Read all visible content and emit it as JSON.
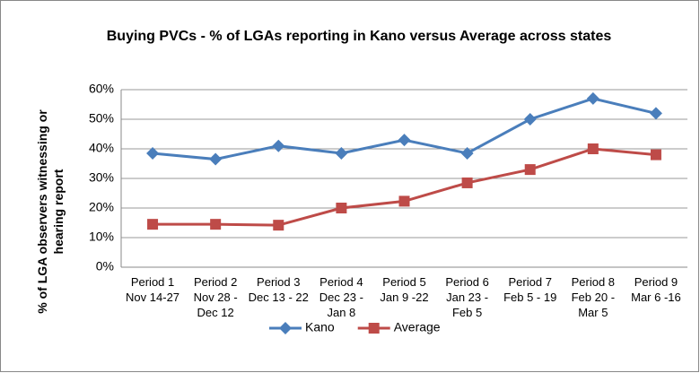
{
  "chart_data": {
    "type": "line",
    "title": "Buying PVCs - % of LGAs reporting in Kano versus Average across states",
    "y_label": "% of LGA observers witnessing or hearing report",
    "categories": [
      "Period 1\nNov 14-27",
      "Period 2\nNov 28 -\nDec 12",
      "Period 3\nDec 13 - 22",
      "Period 4\nDec 23 -\nJan 8",
      "Period 5\nJan 9 -22",
      "Period 6\nJan 23 -\nFeb 5",
      "Period 7\nFeb 5 - 19",
      "Period 8\nFeb 20 -\nMar 5",
      "Period 9\nMar 6 -16"
    ],
    "series": [
      {
        "name": "Kano",
        "color": "#4a7ebb",
        "marker": "diamond",
        "values": [
          38.5,
          36.5,
          41,
          38.5,
          43,
          38.5,
          50,
          57,
          52
        ]
      },
      {
        "name": "Average",
        "color": "#be4b48",
        "marker": "square",
        "values": [
          14.5,
          14.5,
          14.2,
          20,
          22.3,
          28.5,
          33,
          40,
          38
        ]
      }
    ],
    "ylim": [
      0,
      60
    ],
    "yticks": [
      {
        "value": 0,
        "label": "0%"
      },
      {
        "value": 10,
        "label": "10%"
      },
      {
        "value": 20,
        "label": "20%"
      },
      {
        "value": 30,
        "label": "30%"
      },
      {
        "value": 40,
        "label": "40%"
      },
      {
        "value": 50,
        "label": "50%"
      },
      {
        "value": 60,
        "label": "60%"
      }
    ],
    "grid": true,
    "legend": "bottom"
  }
}
